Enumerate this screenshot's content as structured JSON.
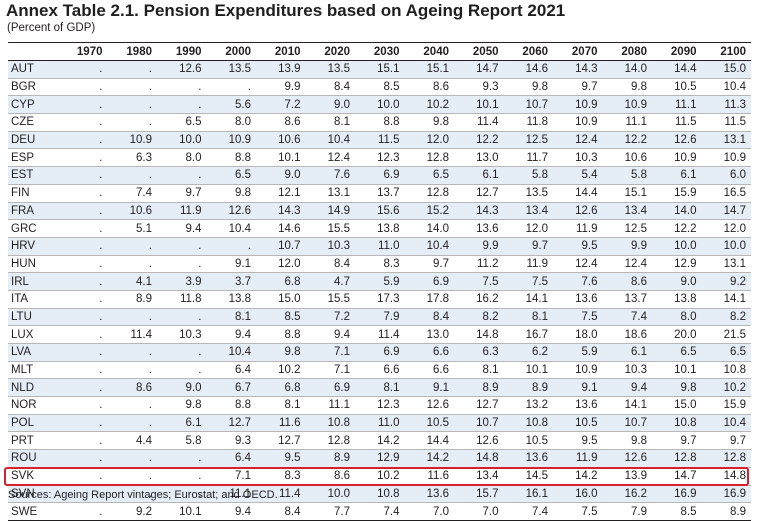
{
  "title": "Annex Table 2.1. Pension Expenditures based on Ageing Report 2021",
  "subtitle": "(Percent of GDP)",
  "columns": [
    "",
    "1970",
    "1980",
    "1990",
    "2000",
    "2010",
    "2020",
    "2030",
    "2040",
    "2050",
    "2060",
    "2070",
    "2080",
    "2090",
    "2100"
  ],
  "rows": [
    {
      "code": "AUT",
      "values": [
        ".",
        ".",
        "12.6",
        "13.5",
        "13.9",
        "13.5",
        "15.1",
        "15.1",
        "14.7",
        "14.6",
        "14.3",
        "14.0",
        "14.4",
        "15.0"
      ]
    },
    {
      "code": "BGR",
      "values": [
        ".",
        ".",
        ".",
        ".",
        "9.9",
        "8.4",
        "8.5",
        "8.6",
        "9.3",
        "9.8",
        "9.7",
        "9.8",
        "10.5",
        "10.4"
      ]
    },
    {
      "code": "CYP",
      "values": [
        ".",
        ".",
        ".",
        "5.6",
        "7.2",
        "9.0",
        "10.0",
        "10.2",
        "10.1",
        "10.7",
        "10.9",
        "10.9",
        "11.1",
        "11.3"
      ]
    },
    {
      "code": "CZE",
      "values": [
        ".",
        ".",
        "6.5",
        "8.0",
        "8.6",
        "8.1",
        "8.8",
        "9.8",
        "11.4",
        "11.8",
        "10.9",
        "11.1",
        "11.5",
        "11.5"
      ]
    },
    {
      "code": "DEU",
      "values": [
        ".",
        "10.9",
        "10.0",
        "10.9",
        "10.6",
        "10.4",
        "11.5",
        "12.0",
        "12.2",
        "12.5",
        "12.4",
        "12.2",
        "12.6",
        "13.1"
      ]
    },
    {
      "code": "ESP",
      "values": [
        ".",
        "6.3",
        "8.0",
        "8.8",
        "10.1",
        "12.4",
        "12.3",
        "12.8",
        "13.0",
        "11.7",
        "10.3",
        "10.6",
        "10.9",
        "10.9"
      ]
    },
    {
      "code": "EST",
      "values": [
        ".",
        ".",
        ".",
        "6.5",
        "9.0",
        "7.6",
        "6.9",
        "6.5",
        "6.1",
        "5.8",
        "5.4",
        "5.8",
        "6.1",
        "6.0"
      ]
    },
    {
      "code": "FIN",
      "values": [
        ".",
        "7.4",
        "9.7",
        "9.8",
        "12.1",
        "13.1",
        "13.7",
        "12.8",
        "12.7",
        "13.5",
        "14.4",
        "15.1",
        "15.9",
        "16.5"
      ]
    },
    {
      "code": "FRA",
      "values": [
        ".",
        "10.6",
        "11.9",
        "12.6",
        "14.3",
        "14.9",
        "15.6",
        "15.2",
        "14.3",
        "13.4",
        "12.6",
        "13.4",
        "14.0",
        "14.7"
      ]
    },
    {
      "code": "GRC",
      "values": [
        ".",
        "5.1",
        "9.4",
        "10.4",
        "14.6",
        "15.5",
        "13.8",
        "14.0",
        "13.6",
        "12.0",
        "11.9",
        "12.5",
        "12.2",
        "12.0"
      ]
    },
    {
      "code": "HRV",
      "values": [
        ".",
        ".",
        ".",
        ".",
        "10.7",
        "10.3",
        "11.0",
        "10.4",
        "9.9",
        "9.7",
        "9.5",
        "9.9",
        "10.0",
        "10.0"
      ]
    },
    {
      "code": "HUN",
      "values": [
        ".",
        ".",
        ".",
        "9.1",
        "12.0",
        "8.4",
        "8.3",
        "9.7",
        "11.2",
        "11.9",
        "12.4",
        "12.4",
        "12.9",
        "13.1"
      ]
    },
    {
      "code": "IRL",
      "values": [
        ".",
        "4.1",
        "3.9",
        "3.7",
        "6.8",
        "4.7",
        "5.9",
        "6.9",
        "7.5",
        "7.5",
        "7.6",
        "8.6",
        "9.0",
        "9.2"
      ]
    },
    {
      "code": "ITA",
      "values": [
        ".",
        "8.9",
        "11.8",
        "13.8",
        "15.0",
        "15.5",
        "17.3",
        "17.8",
        "16.2",
        "14.1",
        "13.6",
        "13.7",
        "13.8",
        "14.1"
      ]
    },
    {
      "code": "LTU",
      "values": [
        ".",
        ".",
        ".",
        "8.1",
        "8.5",
        "7.2",
        "7.9",
        "8.4",
        "8.2",
        "8.1",
        "7.5",
        "7.4",
        "8.0",
        "8.2"
      ]
    },
    {
      "code": "LUX",
      "values": [
        ".",
        "11.4",
        "10.3",
        "9.4",
        "8.8",
        "9.4",
        "11.4",
        "13.0",
        "14.8",
        "16.7",
        "18.0",
        "18.6",
        "20.0",
        "21.5"
      ]
    },
    {
      "code": "LVA",
      "values": [
        ".",
        ".",
        ".",
        "10.4",
        "9.8",
        "7.1",
        "6.9",
        "6.6",
        "6.3",
        "6.2",
        "5.9",
        "6.1",
        "6.5",
        "6.5"
      ]
    },
    {
      "code": "MLT",
      "values": [
        ".",
        ".",
        ".",
        "6.4",
        "10.2",
        "7.1",
        "6.6",
        "6.6",
        "8.1",
        "10.1",
        "10.9",
        "10.3",
        "10.1",
        "10.8"
      ]
    },
    {
      "code": "NLD",
      "values": [
        ".",
        "8.6",
        "9.0",
        "6.7",
        "6.8",
        "6.9",
        "8.1",
        "9.1",
        "8.9",
        "8.9",
        "9.1",
        "9.4",
        "9.8",
        "10.2"
      ]
    },
    {
      "code": "NOR",
      "values": [
        ".",
        ".",
        "9.8",
        "8.8",
        "8.1",
        "11.1",
        "12.3",
        "12.6",
        "12.7",
        "13.2",
        "13.6",
        "14.1",
        "15.0",
        "15.9"
      ]
    },
    {
      "code": "POL",
      "values": [
        ".",
        ".",
        "6.1",
        "12.7",
        "11.6",
        "10.8",
        "11.0",
        "10.5",
        "10.7",
        "10.8",
        "10.5",
        "10.7",
        "10.8",
        "10.4"
      ]
    },
    {
      "code": "PRT",
      "values": [
        ".",
        "4.4",
        "5.8",
        "9.3",
        "12.7",
        "12.8",
        "14.2",
        "14.4",
        "12.6",
        "10.5",
        "9.5",
        "9.8",
        "9.7",
        "9.7"
      ]
    },
    {
      "code": "ROU",
      "values": [
        ".",
        ".",
        ".",
        "6.4",
        "9.5",
        "8.9",
        "12.9",
        "14.2",
        "14.8",
        "13.6",
        "11.9",
        "12.6",
        "12.8",
        "12.8"
      ]
    },
    {
      "code": "SVK",
      "values": [
        ".",
        ".",
        ".",
        "7.1",
        "8.3",
        "8.6",
        "10.2",
        "11.6",
        "13.4",
        "14.5",
        "14.2",
        "13.9",
        "14.7",
        "14.8"
      ]
    },
    {
      "code": "SVN",
      "values": [
        ".",
        ".",
        ".",
        "11.1",
        "11.4",
        "10.0",
        "10.8",
        "13.6",
        "15.7",
        "16.1",
        "16.0",
        "16.2",
        "16.9",
        "16.9"
      ]
    },
    {
      "code": "SWE",
      "values": [
        ".",
        "9.2",
        "10.1",
        "9.4",
        "8.4",
        "7.7",
        "7.4",
        "7.0",
        "7.0",
        "7.4",
        "7.5",
        "7.9",
        "8.5",
        "8.9"
      ]
    }
  ],
  "highlight_color": "#d6202e",
  "shade_color": "#e5eef7",
  "source": "Sources: Ageing Report vintages; Eurostat; and OECD."
}
